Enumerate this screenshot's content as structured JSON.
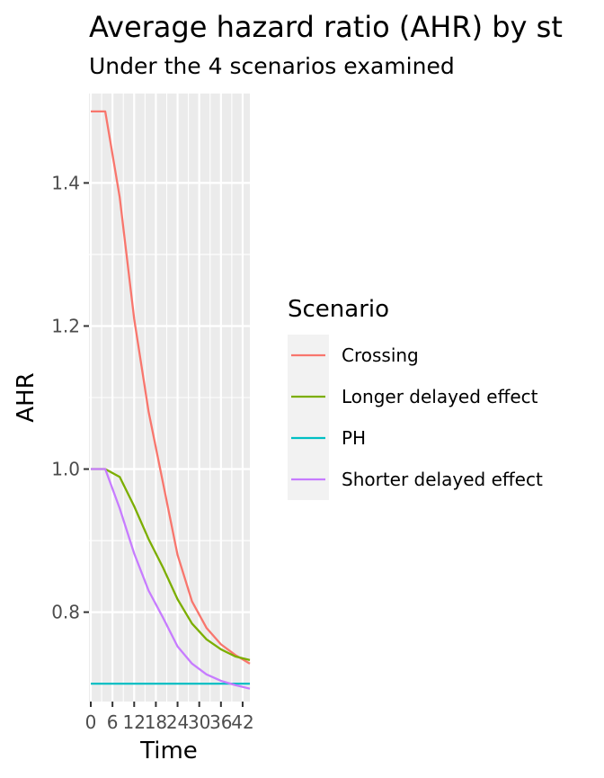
{
  "chart_data": {
    "type": "line",
    "title": "Average hazard ratio (AHR) by st",
    "subtitle": "Under the 4 scenarios examined",
    "xlabel": "Time",
    "ylabel": "AHR",
    "xlim": [
      -0.5,
      44
    ],
    "ylim": [
      0.675,
      1.525
    ],
    "x_ticks": [
      0,
      6,
      12,
      18,
      24,
      30,
      36,
      42
    ],
    "x_tick_labels": [
      "0",
      "6",
      "12",
      "18",
      "24",
      "30",
      "36",
      "42"
    ],
    "y_ticks": [
      0.8,
      1.0,
      1.2,
      1.4
    ],
    "y_tick_labels": [
      "0.8",
      "1.0",
      "1.2",
      "1.4"
    ],
    "grid": true,
    "legend_position": "right",
    "legend_title": "Scenario",
    "x": [
      0,
      4,
      8,
      12,
      16,
      20,
      24,
      28,
      32,
      36,
      40,
      44
    ],
    "series": [
      {
        "name": "Crossing",
        "color": "#F8766D",
        "values": [
          1.5,
          1.5,
          1.38,
          1.21,
          1.08,
          0.98,
          0.88,
          0.815,
          0.778,
          0.755,
          0.74,
          0.728
        ]
      },
      {
        "name": "Longer delayed effect",
        "color": "#7CAE00",
        "values": [
          1.0,
          1.0,
          0.989,
          0.948,
          0.902,
          0.862,
          0.818,
          0.784,
          0.762,
          0.748,
          0.738,
          0.733
        ]
      },
      {
        "name": "PH",
        "color": "#00BFC4",
        "values": [
          0.7,
          0.7,
          0.7,
          0.7,
          0.7,
          0.7,
          0.7,
          0.7,
          0.7,
          0.7,
          0.7,
          0.7
        ]
      },
      {
        "name": "Shorter delayed effect",
        "color": "#C77CFF",
        "values": [
          1.0,
          1.0,
          0.945,
          0.882,
          0.83,
          0.792,
          0.752,
          0.728,
          0.713,
          0.704,
          0.698,
          0.693
        ]
      }
    ]
  }
}
